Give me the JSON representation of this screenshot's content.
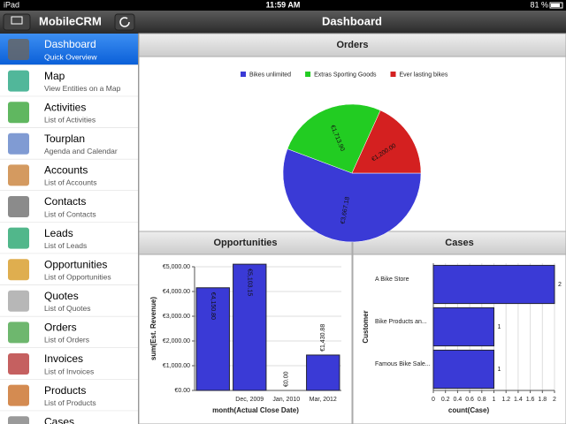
{
  "status_bar": {
    "device": "iPad",
    "time": "11:59 AM",
    "battery": "81 %"
  },
  "sidebar": {
    "title": "MobileCRM",
    "selected": 0,
    "items": [
      {
        "title": "Dashboard",
        "subtitle": "Quick Overview"
      },
      {
        "title": "Map",
        "subtitle": "View Entities on a Map"
      },
      {
        "title": "Activities",
        "subtitle": "List of Activities"
      },
      {
        "title": "Tourplan",
        "subtitle": "Agenda and Calendar"
      },
      {
        "title": "Accounts",
        "subtitle": "List of Accounts"
      },
      {
        "title": "Contacts",
        "subtitle": "List of Contacts"
      },
      {
        "title": "Leads",
        "subtitle": "List of Leads"
      },
      {
        "title": "Opportunities",
        "subtitle": "List of Opportunities"
      },
      {
        "title": "Quotes",
        "subtitle": "List of Quotes"
      },
      {
        "title": "Orders",
        "subtitle": "List of Orders"
      },
      {
        "title": "Invoices",
        "subtitle": "List of Invoices"
      },
      {
        "title": "Products",
        "subtitle": "List of Products"
      },
      {
        "title": "Cases",
        "subtitle": "List of Cases"
      }
    ]
  },
  "main": {
    "title": "Dashboard"
  },
  "chart_data": [
    {
      "type": "pie",
      "title": "Orders",
      "categories": [
        "Bikes unlimited",
        "Extras Sporting Goods",
        "Ever lasting bikes"
      ],
      "values": [
        3667.18,
        1713.9,
        1200.0
      ],
      "value_labels": [
        "€3,667.18",
        "€1,713.90",
        "€1,200.00"
      ],
      "colors": [
        "#3a3ad6",
        "#22cc22",
        "#d42020"
      ],
      "legend": "top"
    },
    {
      "type": "bar",
      "title": "Opportunities",
      "categories": [
        null,
        "Dec, 2009",
        "Jan, 2010",
        "Mar, 2012"
      ],
      "values": [
        4150.8,
        5103.15,
        0,
        1430.88
      ],
      "value_labels": [
        "€4,150.80",
        "€5,103.15",
        "€0.00",
        "€1,430.88"
      ],
      "color": "#3a3ad6",
      "xlabel": "month(Actual Close Date)",
      "ylabel": "sum(Est. Revenue)",
      "ylim": [
        0,
        5000
      ],
      "yticks": [
        {
          "value": 0,
          "label": "€0.00"
        },
        {
          "value": 1000,
          "label": "€1,000.00"
        },
        {
          "value": 2000,
          "label": "€2,000.00"
        },
        {
          "value": 3000,
          "label": "€3,000.00"
        },
        {
          "value": 4000,
          "label": "€4,000.00"
        },
        {
          "value": 5000,
          "label": "€5,000.00"
        }
      ],
      "grid": true
    },
    {
      "type": "hbar",
      "title": "Cases",
      "categories": [
        "A Bike Store",
        "Bike Products an...",
        "Famous Bike Sale..."
      ],
      "values": [
        2,
        1,
        1
      ],
      "color": "#3a3ad6",
      "xlabel": "count(Case)",
      "ylabel": "Customer",
      "xlim": [
        0,
        2
      ],
      "xticks": [
        0,
        0.2,
        0.4,
        0.6,
        0.8,
        1,
        1.2,
        1.4,
        1.6,
        1.8,
        2
      ],
      "grid": true
    }
  ]
}
